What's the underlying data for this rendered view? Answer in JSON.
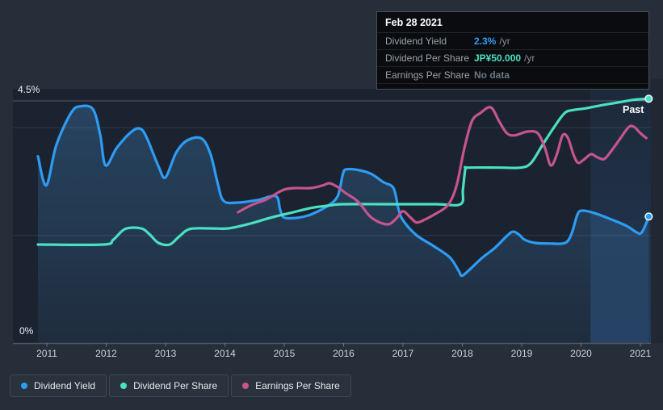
{
  "page": {
    "background": "#262e3a"
  },
  "tooltip": {
    "date": "Feb 28 2021",
    "rows": [
      {
        "label": "Dividend Yield",
        "value": "2.3%",
        "suffix": "/yr",
        "value_color": "#2f9ff4"
      },
      {
        "label": "Dividend Per Share",
        "value": "JP¥50.000",
        "suffix": "/yr",
        "value_color": "#49e1c3"
      },
      {
        "label": "Earnings Per Share",
        "value": "No data",
        "suffix": "",
        "value_color": "#6f7781"
      }
    ]
  },
  "past_label": "Past",
  "axis": {
    "y_top_label": "4.5%",
    "y_bottom_label": "0%"
  },
  "legend": [
    {
      "label": "Dividend Yield",
      "color": "#2d9cf4"
    },
    {
      "label": "Dividend Per Share",
      "color": "#4ae0c2"
    },
    {
      "label": "Earnings Per Share",
      "color": "#c5548f"
    }
  ],
  "chart_data": {
    "type": "line",
    "title": "",
    "x_axis": {
      "ticks": [
        2011,
        2012,
        2013,
        2014,
        2015,
        2016,
        2017,
        2018,
        2019,
        2020,
        2021
      ]
    },
    "y_axis": {
      "min": 0,
      "max": 4.5,
      "unit": "%",
      "gridlines_pct": [
        4.5,
        4.0,
        2.0
      ]
    },
    "highlight_band": {
      "x_start": 2020.16,
      "x_end": 2021.18
    },
    "series": [
      {
        "name": "Dividend Yield",
        "color": "#2d9cf4",
        "area_fill": true,
        "end_dot": true,
        "points": [
          [
            2010.85,
            3.47
          ],
          [
            2010.99,
            2.93
          ],
          [
            2011.16,
            3.68
          ],
          [
            2011.41,
            4.28
          ],
          [
            2011.57,
            4.4
          ],
          [
            2011.78,
            4.34
          ],
          [
            2011.9,
            3.86
          ],
          [
            2011.99,
            3.3
          ],
          [
            2012.18,
            3.63
          ],
          [
            2012.43,
            3.93
          ],
          [
            2012.58,
            3.98
          ],
          [
            2012.69,
            3.8
          ],
          [
            2012.89,
            3.26
          ],
          [
            2013.0,
            3.08
          ],
          [
            2013.18,
            3.54
          ],
          [
            2013.37,
            3.77
          ],
          [
            2013.61,
            3.8
          ],
          [
            2013.76,
            3.5
          ],
          [
            2013.88,
            2.96
          ],
          [
            2013.98,
            2.64
          ],
          [
            2014.22,
            2.61
          ],
          [
            2014.56,
            2.66
          ],
          [
            2014.86,
            2.73
          ],
          [
            2014.93,
            2.48
          ],
          [
            2015.0,
            2.33
          ],
          [
            2015.24,
            2.33
          ],
          [
            2015.45,
            2.39
          ],
          [
            2015.72,
            2.54
          ],
          [
            2015.9,
            2.73
          ],
          [
            2015.99,
            3.15
          ],
          [
            2016.06,
            3.23
          ],
          [
            2016.27,
            3.21
          ],
          [
            2016.47,
            3.14
          ],
          [
            2016.67,
            2.99
          ],
          [
            2016.84,
            2.88
          ],
          [
            2016.92,
            2.51
          ],
          [
            2016.99,
            2.3
          ],
          [
            2017.22,
            2.01
          ],
          [
            2017.52,
            1.8
          ],
          [
            2017.79,
            1.59
          ],
          [
            2017.94,
            1.34
          ],
          [
            2017.99,
            1.25
          ],
          [
            2018.1,
            1.34
          ],
          [
            2018.33,
            1.58
          ],
          [
            2018.54,
            1.76
          ],
          [
            2018.76,
            2.0
          ],
          [
            2018.86,
            2.07
          ],
          [
            2018.96,
            2.01
          ],
          [
            2019.05,
            1.92
          ],
          [
            2019.23,
            1.86
          ],
          [
            2019.46,
            1.85
          ],
          [
            2019.73,
            1.86
          ],
          [
            2019.84,
            2.03
          ],
          [
            2019.94,
            2.39
          ],
          [
            2020.02,
            2.46
          ],
          [
            2020.21,
            2.42
          ],
          [
            2020.48,
            2.31
          ],
          [
            2020.76,
            2.18
          ],
          [
            2020.93,
            2.06
          ],
          [
            2021.01,
            2.04
          ],
          [
            2021.08,
            2.18
          ],
          [
            2021.14,
            2.35
          ]
        ]
      },
      {
        "name": "Dividend Per Share",
        "color": "#4ae0c2",
        "area_fill": false,
        "end_dot": true,
        "points": [
          [
            2010.85,
            1.83
          ],
          [
            2011.95,
            1.83
          ],
          [
            2012.12,
            1.92
          ],
          [
            2012.32,
            2.12
          ],
          [
            2012.59,
            2.13
          ],
          [
            2012.74,
            2.01
          ],
          [
            2012.88,
            1.86
          ],
          [
            2013.07,
            1.83
          ],
          [
            2013.23,
            1.98
          ],
          [
            2013.41,
            2.12
          ],
          [
            2013.75,
            2.13
          ],
          [
            2014.06,
            2.13
          ],
          [
            2014.43,
            2.22
          ],
          [
            2014.77,
            2.33
          ],
          [
            2015.11,
            2.42
          ],
          [
            2015.45,
            2.51
          ],
          [
            2015.72,
            2.55
          ],
          [
            2015.99,
            2.58
          ],
          [
            2016.74,
            2.58
          ],
          [
            2017.56,
            2.58
          ],
          [
            2017.97,
            2.58
          ],
          [
            2018.01,
            2.85
          ],
          [
            2018.05,
            3.23
          ],
          [
            2018.1,
            3.26
          ],
          [
            2018.65,
            3.26
          ],
          [
            2018.99,
            3.26
          ],
          [
            2019.16,
            3.35
          ],
          [
            2019.35,
            3.68
          ],
          [
            2019.57,
            4.05
          ],
          [
            2019.73,
            4.28
          ],
          [
            2019.87,
            4.33
          ],
          [
            2020.07,
            4.36
          ],
          [
            2020.35,
            4.42
          ],
          [
            2020.62,
            4.47
          ],
          [
            2020.89,
            4.52
          ],
          [
            2021.14,
            4.54
          ]
        ]
      },
      {
        "name": "Earnings Per Share",
        "color": "#c5548f",
        "area_fill": false,
        "end_dot": false,
        "points": [
          [
            2014.22,
            2.43
          ],
          [
            2014.46,
            2.57
          ],
          [
            2014.7,
            2.67
          ],
          [
            2014.97,
            2.84
          ],
          [
            2015.18,
            2.88
          ],
          [
            2015.45,
            2.88
          ],
          [
            2015.65,
            2.93
          ],
          [
            2015.76,
            2.97
          ],
          [
            2015.9,
            2.9
          ],
          [
            2016.03,
            2.79
          ],
          [
            2016.24,
            2.63
          ],
          [
            2016.44,
            2.36
          ],
          [
            2016.61,
            2.24
          ],
          [
            2016.77,
            2.21
          ],
          [
            2016.9,
            2.33
          ],
          [
            2017.0,
            2.45
          ],
          [
            2017.12,
            2.34
          ],
          [
            2017.23,
            2.24
          ],
          [
            2017.38,
            2.3
          ],
          [
            2017.53,
            2.39
          ],
          [
            2017.72,
            2.52
          ],
          [
            2017.83,
            2.7
          ],
          [
            2017.92,
            3.0
          ],
          [
            2018.03,
            3.6
          ],
          [
            2018.16,
            4.12
          ],
          [
            2018.3,
            4.27
          ],
          [
            2018.48,
            4.38
          ],
          [
            2018.62,
            4.12
          ],
          [
            2018.75,
            3.9
          ],
          [
            2018.88,
            3.86
          ],
          [
            2019.1,
            3.93
          ],
          [
            2019.27,
            3.9
          ],
          [
            2019.39,
            3.63
          ],
          [
            2019.49,
            3.3
          ],
          [
            2019.59,
            3.5
          ],
          [
            2019.69,
            3.86
          ],
          [
            2019.78,
            3.81
          ],
          [
            2019.87,
            3.51
          ],
          [
            2019.95,
            3.35
          ],
          [
            2020.06,
            3.42
          ],
          [
            2020.17,
            3.51
          ],
          [
            2020.28,
            3.45
          ],
          [
            2020.39,
            3.42
          ],
          [
            2020.51,
            3.57
          ],
          [
            2020.66,
            3.8
          ],
          [
            2020.8,
            4.01
          ],
          [
            2020.89,
            4.02
          ],
          [
            2021.0,
            3.9
          ],
          [
            2021.1,
            3.81
          ]
        ]
      }
    ]
  }
}
